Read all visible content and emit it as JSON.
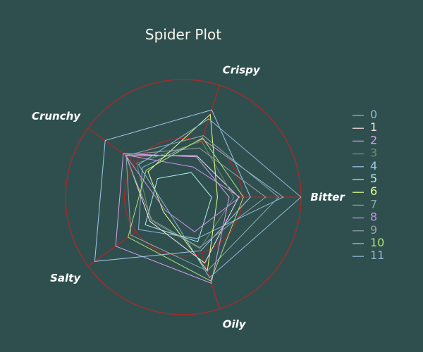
{
  "chart_data": {
    "type": "radar",
    "title": "Spider Plot",
    "axes": [
      "Crispy",
      "Bitter",
      "Oily",
      "Salty",
      "Crunchy"
    ],
    "rlim": [
      0,
      1
    ],
    "grid_rings": [
      0.5,
      1.0
    ],
    "ring_color": "#a52a2a",
    "legend_position": "right",
    "series": [
      {
        "name": "0",
        "color": "#8fb8d8",
        "values": [
          0.52,
          0.85,
          0.37,
          0.47,
          0.43
        ]
      },
      {
        "name": "1",
        "color": "#ffe4e1",
        "values": [
          0.37,
          0.47,
          0.59,
          0.35,
          0.6
        ]
      },
      {
        "name": "2",
        "color": "#d8a0ea",
        "values": [
          0.36,
          0.39,
          0.77,
          0.71,
          0.63
        ]
      },
      {
        "name": "3",
        "color": "#6f8f6f",
        "values": [
          0.5,
          0.43,
          0.46,
          0.34,
          0.49
        ]
      },
      {
        "name": "4",
        "color": "#a0c8ea",
        "values": [
          0.78,
          0.57,
          0.48,
          0.93,
          0.82
        ]
      },
      {
        "name": "5",
        "color": "#b0f0e8",
        "values": [
          0.22,
          0.24,
          0.4,
          0.4,
          0.27
        ]
      },
      {
        "name": "6",
        "color": "#e6ff8c",
        "values": [
          0.74,
          0.29,
          0.66,
          0.21,
          0.37
        ]
      },
      {
        "name": "7",
        "color": "#8aaaaa",
        "values": [
          0.55,
          0.81,
          0.66,
          0.55,
          0.6
        ]
      },
      {
        "name": "8",
        "color": "#c890e8",
        "values": [
          0.27,
          0.48,
          0.31,
          0.19,
          0.61
        ]
      },
      {
        "name": "9",
        "color": "#9aa0a0",
        "values": [
          0.44,
          0.7,
          0.45,
          0.33,
          0.61
        ]
      },
      {
        "name": "10",
        "color": "#b0e07a",
        "values": [
          0.53,
          0.51,
          0.75,
          0.58,
          0.39
        ]
      },
      {
        "name": "11",
        "color": "#8cb8d8",
        "values": [
          0.7,
          1.0,
          0.72,
          0.17,
          0.47
        ]
      }
    ]
  }
}
